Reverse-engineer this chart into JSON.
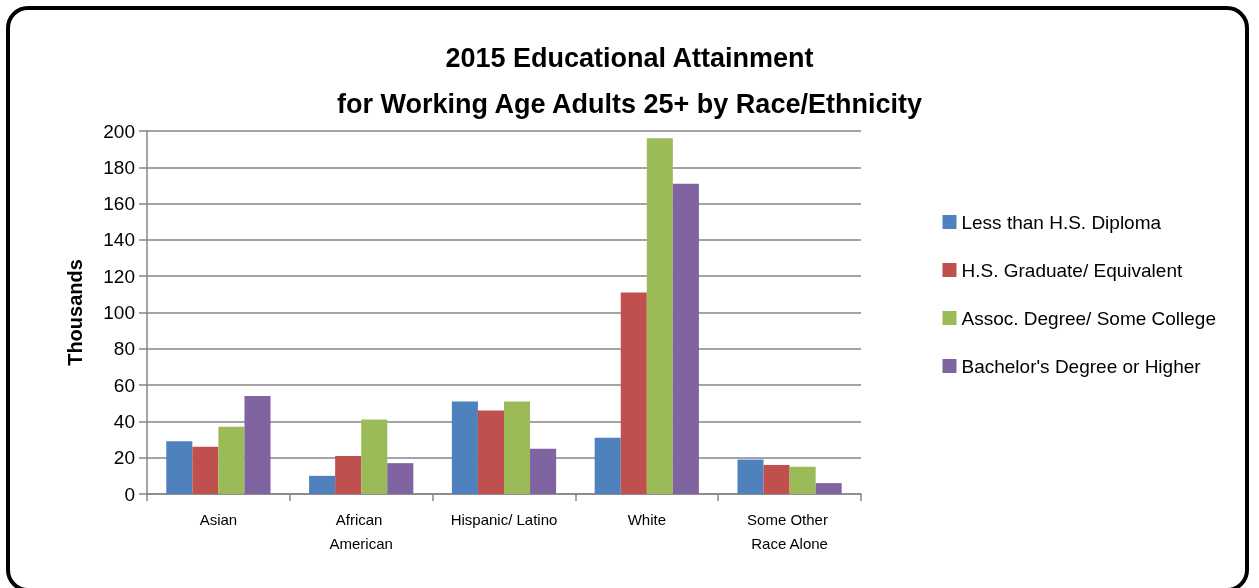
{
  "chart_data": {
    "type": "bar",
    "title": "2015 Educational Attainment\nfor Working Age Adults 25+ by Race/Ethnicity",
    "ylabel": "Thousands",
    "categories": [
      "Asian",
      "African American",
      "Hispanic/ Latino",
      "White",
      "Some Other Race Alone"
    ],
    "series": [
      {
        "name": "Less than H.S. Diploma",
        "color": "#4f81bd",
        "values": [
          29,
          10,
          51,
          31,
          19
        ]
      },
      {
        "name": "H.S. Graduate/ Equivalent",
        "color": "#c0504d",
        "values": [
          26,
          21,
          46,
          111,
          16
        ]
      },
      {
        "name": "Assoc. Degree/ Some College",
        "color": "#9bbb59",
        "values": [
          37,
          41,
          51,
          196,
          15
        ]
      },
      {
        "name": "Bachelor's Degree or Higher",
        "color": "#8064a2",
        "values": [
          54,
          17,
          25,
          171,
          6
        ]
      }
    ],
    "ylim": [
      0,
      200
    ],
    "yticks": [
      0,
      20,
      40,
      60,
      80,
      100,
      120,
      140,
      160,
      180,
      200
    ],
    "grid": "y",
    "legend": "right"
  }
}
